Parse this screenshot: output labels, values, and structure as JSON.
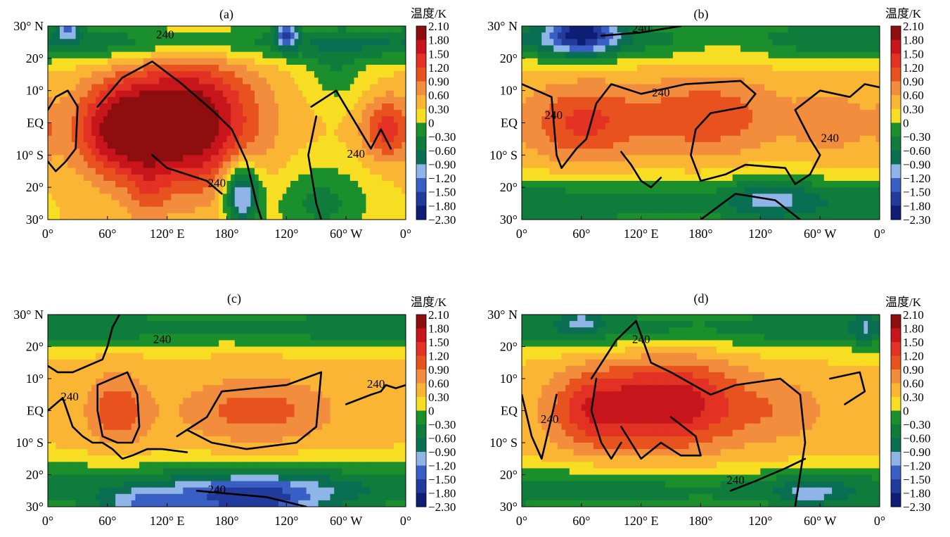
{
  "chart_data": {
    "type": "heatmap",
    "colorbar": {
      "title": "温度/K",
      "levels": [
        "2.10",
        "1.80",
        "1.50",
        "1.20",
        "0.90",
        "0.60",
        "0.30",
        "0",
        "−0.30",
        "−0.60",
        "−0.90",
        "−1.20",
        "−1.50",
        "−1.80",
        "−2.30"
      ],
      "colors": [
        "#8e0e10",
        "#c8151b",
        "#e33124",
        "#e8521f",
        "#f18d3c",
        "#f9b533",
        "#f8de22",
        "#1a8f2c",
        "#0f7c3c",
        "#0a6e52",
        "#8fb4e8",
        "#3a5fc4",
        "#223a9c",
        "#0d1e74"
      ],
      "level_values": [
        2.1,
        1.8,
        1.5,
        1.2,
        0.9,
        0.6,
        0.3,
        0,
        -0.3,
        -0.6,
        -0.9,
        -1.2,
        -1.5,
        -1.8,
        -2.3
      ]
    },
    "x_ticks": [
      "0°",
      "60°",
      "120° E",
      "180°",
      "120°",
      "60° W",
      "0°"
    ],
    "x_tick_values": [
      0,
      60,
      120,
      180,
      240,
      300,
      360
    ],
    "y_ticks": [
      "30° N",
      "20°",
      "10°",
      "EQ",
      "10° S",
      "20°",
      "30°"
    ],
    "y_tick_values": [
      30,
      20,
      10,
      0,
      -10,
      -20,
      -30
    ],
    "xlim": [
      0,
      360
    ],
    "ylim": [
      -30,
      30
    ],
    "contour_label": "240",
    "panels": [
      {
        "label": "(a)",
        "background_value": 0.3,
        "anomalies": [
          {
            "lon": 140,
            "lat": 0,
            "rlon": 68,
            "rlat": 20,
            "amp": 1.9
          },
          {
            "lon": 70,
            "lat": -2,
            "rlon": 45,
            "rlat": 14,
            "amp": 1.3
          },
          {
            "lon": 340,
            "lat": -2,
            "rlon": 25,
            "rlat": 10,
            "amp": 1.0
          },
          {
            "lon": 100,
            "lat": -22,
            "rlon": 20,
            "rlat": 10,
            "amp": 0.4
          },
          {
            "lon": 0,
            "lat": 25,
            "rlon": 360,
            "rlat": 6,
            "amp": -0.9
          },
          {
            "lon": 195,
            "lat": -22,
            "rlon": 18,
            "rlat": 10,
            "amp": -1.7
          },
          {
            "lon": 20,
            "lat": 30,
            "rlon": 12,
            "rlat": 4,
            "amp": -1.1
          },
          {
            "lon": 240,
            "lat": 28,
            "rlon": 10,
            "rlat": 5,
            "amp": -1.4
          },
          {
            "lon": 275,
            "lat": -25,
            "rlon": 50,
            "rlat": 12,
            "amp": -0.7
          },
          {
            "lon": 290,
            "lat": 15,
            "rlon": 30,
            "rlat": 9,
            "amp": -0.5
          }
        ],
        "contours": [
          [
            [
              0,
              4
            ],
            [
              8,
              8
            ],
            [
              20,
              10
            ],
            [
              30,
              5
            ],
            [
              28,
              -8
            ],
            [
              18,
              -12
            ],
            [
              8,
              -15
            ],
            [
              0,
              -12
            ]
          ],
          [
            [
              50,
              5
            ],
            [
              75,
              14
            ],
            [
              105,
              19
            ],
            [
              135,
              12
            ],
            [
              165,
              4
            ],
            [
              185,
              -2
            ],
            [
              200,
              -12
            ],
            [
              210,
              -25
            ],
            [
              215,
              -30
            ]
          ],
          [
            [
              105,
              -10
            ],
            [
              120,
              -14
            ],
            [
              140,
              -16
            ],
            [
              160,
              -18
            ],
            [
              175,
              -22
            ]
          ],
          [
            [
              265,
              5
            ],
            [
              290,
              10
            ],
            [
              325,
              -8
            ],
            [
              335,
              -2
            ],
            [
              345,
              -8
            ]
          ],
          [
            [
              270,
              2
            ],
            [
              262,
              -10
            ],
            [
              270,
              -25
            ],
            [
              275,
              -30
            ]
          ]
        ],
        "contour_labels": [
          {
            "lon": 118,
            "lat": 27
          },
          {
            "lon": 170,
            "lat": -19
          },
          {
            "lon": 310,
            "lat": -10
          }
        ]
      },
      {
        "label": "(b)",
        "background_value": 0.35,
        "anomalies": [
          {
            "lon": 60,
            "lat": 0,
            "rlon": 55,
            "rlat": 12,
            "amp": 0.9
          },
          {
            "lon": 185,
            "lat": 2,
            "rlon": 75,
            "rlat": 12,
            "amp": 0.8
          },
          {
            "lon": 310,
            "lat": 0,
            "rlon": 35,
            "rlat": 10,
            "amp": 0.4
          },
          {
            "lon": 0,
            "lat": 26,
            "rlon": 360,
            "rlat": 7,
            "amp": -0.9
          },
          {
            "lon": 0,
            "lat": -25,
            "rlon": 360,
            "rlat": 8,
            "amp": -0.9
          },
          {
            "lon": 60,
            "lat": 28,
            "rlon": 35,
            "rlat": 7,
            "amp": -1.6
          },
          {
            "lon": 250,
            "lat": -23,
            "rlon": 40,
            "rlat": 8,
            "amp": -0.6
          },
          {
            "lon": 210,
            "lat": 25,
            "rlon": 50,
            "rlat": 6,
            "amp": 0.3
          }
        ],
        "contours": [
          [
            [
              0,
              12
            ],
            [
              30,
              8
            ],
            [
              35,
              -10
            ],
            [
              40,
              -14
            ],
            [
              55,
              -8
            ],
            [
              65,
              -5
            ],
            [
              75,
              6
            ],
            [
              90,
              12
            ],
            [
              120,
              9
            ],
            [
              165,
              12
            ],
            [
              220,
              13
            ],
            [
              235,
              9
            ],
            [
              225,
              5
            ],
            [
              190,
              3
            ],
            [
              175,
              -2
            ],
            [
              170,
              -10
            ],
            [
              180,
              -18
            ],
            [
              205,
              -16
            ],
            [
              225,
              -13
            ],
            [
              265,
              -14
            ],
            [
              275,
              -19
            ],
            [
              290,
              -16
            ],
            [
              300,
              -10
            ],
            [
              290,
              -5
            ],
            [
              275,
              4
            ],
            [
              300,
              10
            ],
            [
              330,
              8
            ],
            [
              345,
              12
            ],
            [
              360,
              11
            ]
          ],
          [
            [
              100,
              -9
            ],
            [
              110,
              -13
            ],
            [
              120,
              -18
            ],
            [
              130,
              -20
            ],
            [
              140,
              -17
            ]
          ],
          [
            [
              80,
              27
            ],
            [
              120,
              28
            ],
            [
              160,
              30
            ]
          ],
          [
            [
              180,
              -30
            ],
            [
              215,
              -22
            ],
            [
              255,
              -24
            ],
            [
              280,
              -30
            ]
          ]
        ],
        "contour_labels": [
          {
            "lon": 32,
            "lat": 2
          },
          {
            "lon": 140,
            "lat": 9
          },
          {
            "lon": 310,
            "lat": -5
          },
          {
            "lon": 120,
            "lat": 29
          }
        ]
      },
      {
        "label": "(c)",
        "background_value": 0.35,
        "anomalies": [
          {
            "lon": 70,
            "lat": 0,
            "rlon": 30,
            "rlat": 11,
            "amp": 0.8
          },
          {
            "lon": 210,
            "lat": 0,
            "rlon": 75,
            "rlat": 10,
            "amp": 0.7
          },
          {
            "lon": 0,
            "lat": 26,
            "rlon": 360,
            "rlat": 6,
            "amp": -0.9
          },
          {
            "lon": 0,
            "lat": -24,
            "rlon": 360,
            "rlat": 8,
            "amp": -0.8
          },
          {
            "lon": 200,
            "lat": -28,
            "rlon": 85,
            "rlat": 8,
            "amp": -1.6
          },
          {
            "lon": 90,
            "lat": -29,
            "rlon": 40,
            "rlat": 4,
            "amp": -0.8
          }
        ],
        "contours": [
          [
            [
              0,
              14
            ],
            [
              10,
              12
            ],
            [
              25,
              12
            ],
            [
              40,
              14
            ],
            [
              55,
              16
            ],
            [
              60,
              20
            ],
            [
              65,
              26
            ],
            [
              72,
              30
            ]
          ],
          [
            [
              50,
              8
            ],
            [
              80,
              12
            ],
            [
              90,
              5
            ],
            [
              92,
              -5
            ],
            [
              85,
              -10
            ],
            [
              70,
              -10
            ],
            [
              55,
              -8
            ],
            [
              50,
              0
            ],
            [
              50,
              8
            ]
          ],
          [
            [
              0,
              0
            ],
            [
              15,
              4
            ],
            [
              25,
              -5
            ],
            [
              35,
              -8
            ],
            [
              45,
              -10
            ],
            [
              55,
              -10
            ],
            [
              65,
              -12
            ],
            [
              75,
              -15
            ],
            [
              85,
              -14
            ],
            [
              100,
              -12
            ],
            [
              115,
              -12
            ],
            [
              140,
              -13
            ]
          ],
          [
            [
              130,
              -8
            ],
            [
              160,
              -2
            ],
            [
              175,
              6
            ],
            [
              240,
              8
            ],
            [
              275,
              12
            ],
            [
              270,
              -5
            ],
            [
              250,
              -10
            ],
            [
              200,
              -12
            ],
            [
              165,
              -10
            ],
            [
              140,
              -6
            ]
          ],
          [
            [
              300,
              2
            ],
            [
              325,
              5
            ],
            [
              335,
              6
            ],
            [
              340,
              8
            ],
            [
              350,
              7
            ],
            [
              360,
              8
            ]
          ],
          [
            [
              150,
              -25
            ],
            [
              220,
              -27
            ],
            [
              260,
              -30
            ]
          ]
        ],
        "contour_labels": [
          {
            "lon": 22,
            "lat": 4
          },
          {
            "lon": 115,
            "lat": 22
          },
          {
            "lon": 330,
            "lat": 8
          },
          {
            "lon": 170,
            "lat": -25
          }
        ]
      },
      {
        "label": "(d)",
        "background_value": 0.35,
        "anomalies": [
          {
            "lon": 150,
            "lat": 2,
            "rlon": 70,
            "rlat": 14,
            "amp": 1.4
          },
          {
            "lon": 70,
            "lat": 0,
            "rlon": 45,
            "rlat": 12,
            "amp": 0.9
          },
          {
            "lon": 260,
            "lat": 0,
            "rlon": 55,
            "rlat": 10,
            "amp": 0.4
          },
          {
            "lon": 0,
            "lat": 26,
            "rlon": 360,
            "rlat": 7,
            "amp": -0.9
          },
          {
            "lon": 0,
            "lat": -25,
            "rlon": 360,
            "rlat": 7,
            "amp": -0.9
          },
          {
            "lon": 60,
            "lat": 28,
            "rlon": 20,
            "rlat": 4,
            "amp": -0.6
          },
          {
            "lon": 290,
            "lat": -26,
            "rlon": 30,
            "rlat": 5,
            "amp": -0.6
          },
          {
            "lon": 345,
            "lat": 26,
            "rlon": 12,
            "rlat": 6,
            "amp": -0.4
          }
        ],
        "contours": [
          [
            [
              0,
              5
            ],
            [
              10,
              -8
            ],
            [
              20,
              -15
            ],
            [
              30,
              -2
            ],
            [
              35,
              5
            ]
          ],
          [
            [
              70,
              10
            ],
            [
              95,
              22
            ],
            [
              115,
              28
            ],
            [
              130,
              15
            ],
            [
              150,
              12
            ],
            [
              190,
              5
            ],
            [
              215,
              8
            ],
            [
              260,
              10
            ],
            [
              280,
              5
            ],
            [
              285,
              -10
            ],
            [
              280,
              -20
            ],
            [
              275,
              -30
            ]
          ],
          [
            [
              150,
              -2
            ],
            [
              175,
              -8
            ],
            [
              180,
              -14
            ],
            [
              160,
              -14
            ],
            [
              140,
              -10
            ],
            [
              120,
              -15
            ],
            [
              100,
              -5
            ]
          ],
          [
            [
              100,
              -10
            ],
            [
              90,
              -15
            ],
            [
              80,
              -10
            ],
            [
              70,
              0
            ],
            [
              75,
              10
            ]
          ],
          [
            [
              210,
              -25
            ],
            [
              235,
              -22
            ],
            [
              265,
              -18
            ],
            [
              285,
              -15
            ]
          ],
          [
            [
              310,
              10
            ],
            [
              340,
              12
            ],
            [
              345,
              6
            ],
            [
              325,
              2
            ]
          ]
        ],
        "contour_labels": [
          {
            "lon": 28,
            "lat": -3
          },
          {
            "lon": 120,
            "lat": 22
          },
          {
            "lon": 215,
            "lat": -22
          }
        ]
      }
    ]
  }
}
